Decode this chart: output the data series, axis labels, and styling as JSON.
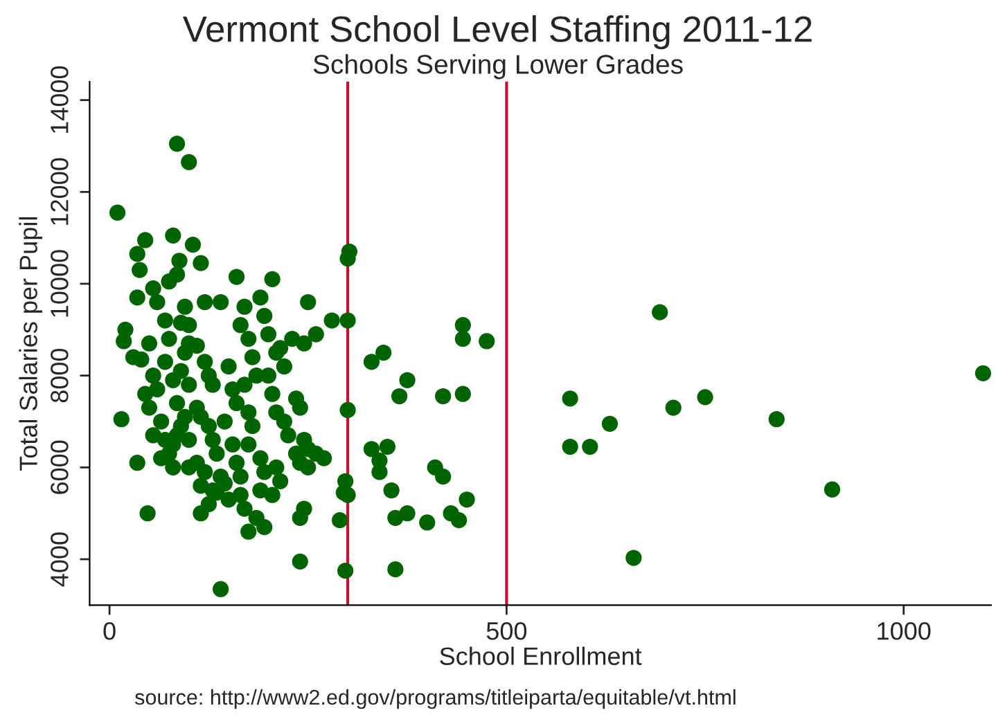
{
  "chart_data": {
    "type": "scatter",
    "title": "Vermont School Level Staffing 2011-12",
    "subtitle": "Schools Serving Lower Grades",
    "xlabel": "School Enrollment",
    "ylabel": "Total Salaries per Pupil",
    "annotations": [
      "source: http://www2.ed.gov/programs/titleiparta/equitable/vt.html"
    ],
    "xlim": [
      -25,
      1110
    ],
    "xticks": [
      0,
      500,
      1000
    ],
    "ylim": [
      3000,
      14400
    ],
    "yticks": [
      4000,
      6000,
      8000,
      10000,
      12000,
      14000
    ],
    "grid": false,
    "legend": false,
    "marker": "circle",
    "ref_lines": [
      {
        "axis": "x",
        "value": 300,
        "color": "#c8102e"
      },
      {
        "axis": "x",
        "value": 500,
        "color": "#c8102e"
      }
    ],
    "series": [
      {
        "color": "#006400",
        "x": [
          10,
          20,
          18,
          30,
          40,
          15,
          35,
          48,
          45,
          35,
          38,
          35,
          55,
          60,
          75,
          80,
          88,
          85,
          95,
          90,
          70,
          50,
          55,
          45,
          60,
          70,
          75,
          80,
          85,
          90,
          95,
          100,
          65,
          70,
          75,
          80,
          85,
          90,
          95,
          100,
          65,
          80,
          100,
          55,
          50,
          100,
          100,
          110,
          115,
          120,
          105,
          120,
          125,
          130,
          110,
          115,
          125,
          130,
          135,
          110,
          120,
          115,
          130,
          140,
          125,
          115,
          135,
          145,
          150,
          140,
          140,
          150,
          155,
          160,
          145,
          155,
          160,
          165,
          165,
          170,
          170,
          160,
          165,
          175,
          180,
          185,
          170,
          175,
          180,
          175,
          190,
          195,
          190,
          185,
          175,
          195,
          190,
          195,
          200,
          200,
          205,
          210,
          215,
          220,
          205,
          210,
          220,
          225,
          210,
          215,
          205,
          230,
          235,
          240,
          245,
          250,
          235,
          240,
          250,
          245,
          260,
          270,
          245,
          240,
          240,
          260,
          250,
          290,
          280,
          302,
          300,
          300,
          300,
          297,
          295,
          300,
          297,
          360,
          330,
          345,
          375,
          365,
          330,
          350,
          340,
          340,
          355,
          375,
          360,
          400,
          410,
          420,
          430,
          440,
          450,
          445,
          420,
          445,
          445,
          475,
          85,
          100,
          580,
          580,
          605,
          630,
          660,
          693,
          710,
          750,
          840,
          910,
          1100
        ],
        "values": [
          11550,
          9000,
          8750,
          8400,
          8350,
          7050,
          6100,
          5000,
          10950,
          10650,
          10300,
          9700,
          9900,
          9600,
          10050,
          11050,
          10500,
          10200,
          9500,
          9150,
          9200,
          8700,
          8000,
          7600,
          7700,
          8300,
          8800,
          7900,
          7400,
          8100,
          8500,
          8700,
          7000,
          6600,
          6300,
          6500,
          6700,
          6900,
          7100,
          6600,
          6200,
          6000,
          6000,
          6700,
          7300,
          7800,
          9100,
          8650,
          10450,
          9600,
          10850,
          8300,
          8000,
          7800,
          7300,
          7100,
          6900,
          6600,
          6300,
          6100,
          5900,
          5600,
          5500,
          5800,
          5200,
          5000,
          5450,
          5650,
          5300,
          3350,
          9600,
          8200,
          7700,
          7400,
          7000,
          6500,
          6100,
          5800,
          5400,
          5100,
          9500,
          10150,
          9100,
          8800,
          8400,
          8000,
          7800,
          7200,
          6900,
          6500,
          6200,
          5900,
          5500,
          4900,
          4600,
          4700,
          9700,
          9300,
          8900,
          8000,
          10100,
          8500,
          8600,
          8200,
          7600,
          7200,
          7000,
          6700,
          6000,
          5700,
          5400,
          8800,
          7500,
          7300,
          6600,
          6400,
          6300,
          6100,
          9600,
          8700,
          6300,
          6200,
          5100,
          4900,
          3950,
          8900,
          6000,
          4850,
          9200,
          10700,
          10550,
          9200,
          7250,
          5700,
          5450,
          5400,
          3750,
          3780,
          8300,
          8500,
          7900,
          7550,
          6400,
          6450,
          6150,
          5900,
          5500,
          5000,
          4900,
          4800,
          6000,
          5800,
          5000,
          4850,
          5300,
          7600,
          7550,
          8800,
          9100,
          8750,
          13050,
          12650,
          7500,
          6450,
          6450,
          6950,
          4030,
          9380,
          7300,
          7530,
          7050,
          5520,
          8050
        ]
      }
    ]
  }
}
